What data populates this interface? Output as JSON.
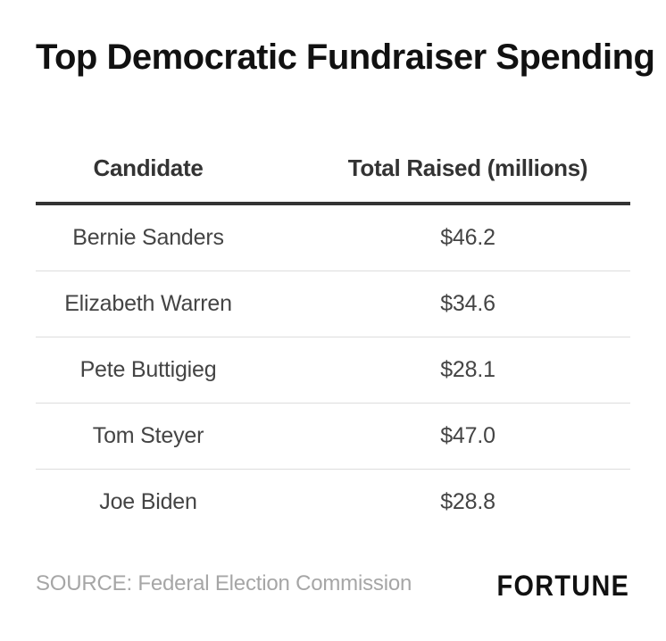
{
  "chart_data": {
    "type": "table",
    "title": "Top Democratic Fundraiser Spending",
    "columns": [
      "Candidate",
      "Total Raised (millions)"
    ],
    "rows": [
      {
        "candidate": "Bernie Sanders",
        "total": "$46.2",
        "value": 46.2
      },
      {
        "candidate": "Elizabeth Warren",
        "total": "$34.6",
        "value": 34.6
      },
      {
        "candidate": "Pete Buttigieg",
        "total": "$28.1",
        "value": 28.1
      },
      {
        "candidate": "Tom Steyer",
        "total": "$47.0",
        "value": 47.0
      },
      {
        "candidate": "Joe Biden",
        "total": "$28.8",
        "value": 28.8
      }
    ],
    "source": "SOURCE: Federal Election Commission",
    "logo": "FORTUNE"
  }
}
